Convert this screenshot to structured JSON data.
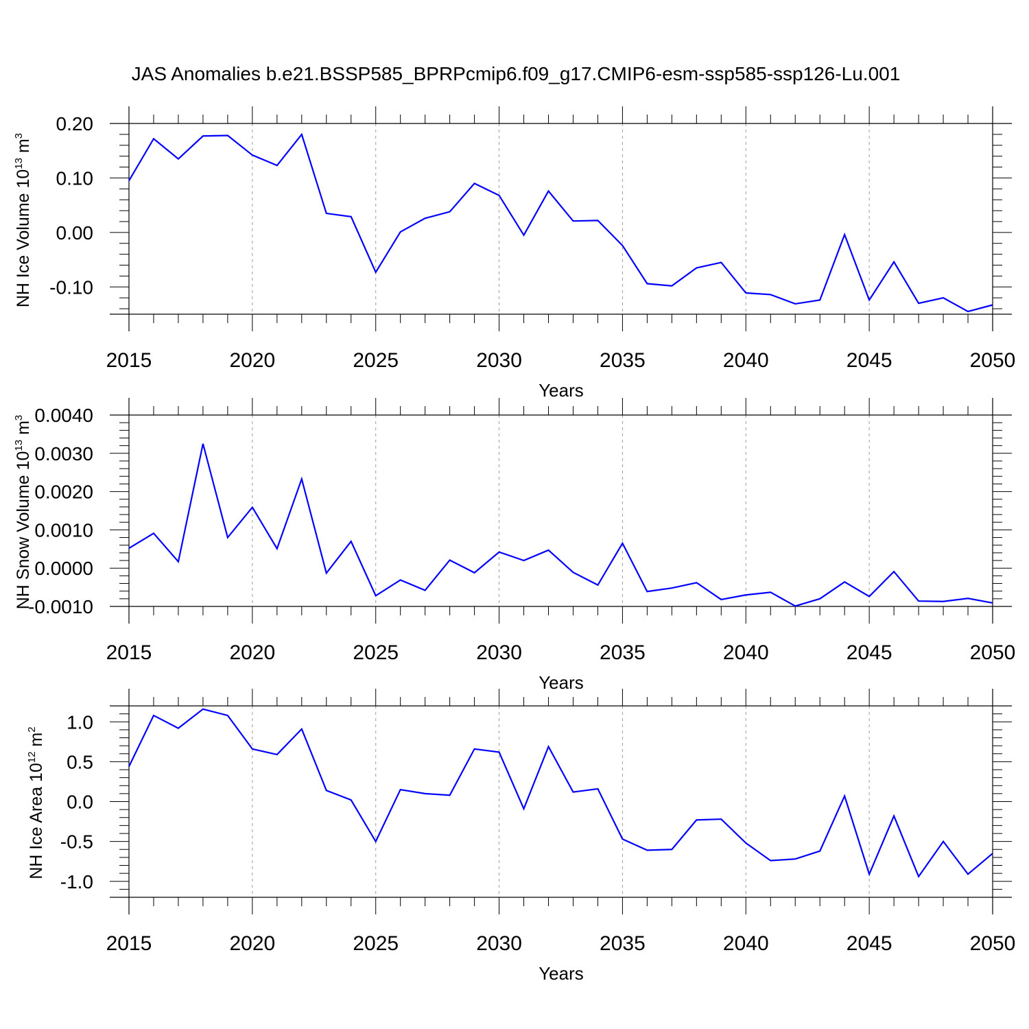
{
  "chart_data": [
    {
      "type": "line",
      "title": "JAS Anomalies b.e21.BSSP585_BPRPcmip6.f09_g17.CMIP6-esm-ssp585-ssp126-Lu.001",
      "xlabel": "Years",
      "ylabel": {
        "text": "NH Ice Volume 10",
        "exp": "13",
        "unit": " m",
        "unit_exp": "3"
      },
      "xlim": [
        2015,
        2050
      ],
      "ylim": [
        -0.15,
        0.2
      ],
      "x_ticks": [
        "2015",
        "2020",
        "2025",
        "2030",
        "2035",
        "2040",
        "2045",
        "2050"
      ],
      "y_ticks": [
        {
          "value": 0.2,
          "label": "0.20"
        },
        {
          "value": 0.1,
          "label": "0.10"
        },
        {
          "value": 0.0,
          "label": "0.00"
        },
        {
          "value": -0.1,
          "label": "-0.10"
        }
      ],
      "grid": "vertical-dashed",
      "series": [
        {
          "name": "NH Ice Volume",
          "color": "#0000ff",
          "x": [
            2015,
            2016,
            2017,
            2018,
            2019,
            2020,
            2021,
            2022,
            2023,
            2024,
            2025,
            2026,
            2027,
            2028,
            2029,
            2030,
            2031,
            2032,
            2033,
            2034,
            2035,
            2036,
            2037,
            2038,
            2039,
            2040,
            2041,
            2042,
            2043,
            2044,
            2045,
            2046,
            2047,
            2048,
            2049,
            2050
          ],
          "values": [
            0.095,
            0.172,
            0.135,
            0.177,
            0.178,
            0.142,
            0.123,
            0.18,
            0.035,
            0.029,
            -0.073,
            0.001,
            0.026,
            0.038,
            0.09,
            0.068,
            -0.005,
            0.076,
            0.021,
            0.022,
            -0.024,
            -0.094,
            -0.098,
            -0.065,
            -0.055,
            -0.111,
            -0.114,
            -0.131,
            -0.124,
            -0.004,
            -0.124,
            -0.054,
            -0.13,
            -0.12,
            -0.145,
            -0.133
          ]
        }
      ]
    },
    {
      "type": "line",
      "title": "",
      "xlabel": "Years",
      "ylabel": {
        "text": "NH Snow Volume 10",
        "exp": "13",
        "unit": " m",
        "unit_exp": "3"
      },
      "xlim": [
        2015,
        2050
      ],
      "ylim": [
        -0.001,
        0.004
      ],
      "x_ticks": [
        "2015",
        "2020",
        "2025",
        "2030",
        "2035",
        "2040",
        "2045",
        "2050"
      ],
      "y_ticks": [
        {
          "value": 0.004,
          "label": "0.0040"
        },
        {
          "value": 0.003,
          "label": "0.0030"
        },
        {
          "value": 0.002,
          "label": "0.0020"
        },
        {
          "value": 0.001,
          "label": "0.0010"
        },
        {
          "value": 0.0,
          "label": "0.0000"
        },
        {
          "value": -0.001,
          "label": "-0.0010"
        }
      ],
      "grid": "vertical-dashed",
      "series": [
        {
          "name": "NH Snow Volume",
          "color": "#0000ff",
          "x": [
            2015,
            2016,
            2017,
            2018,
            2019,
            2020,
            2021,
            2022,
            2023,
            2024,
            2025,
            2026,
            2027,
            2028,
            2029,
            2030,
            2031,
            2032,
            2033,
            2034,
            2035,
            2036,
            2037,
            2038,
            2039,
            2040,
            2041,
            2042,
            2043,
            2044,
            2045,
            2046,
            2047,
            2048,
            2049,
            2050
          ],
          "values": [
            0.00052,
            0.00091,
            0.00017,
            0.00325,
            0.0008,
            0.00159,
            0.00051,
            0.00233,
            -0.00013,
            0.0007,
            -0.00072,
            -0.00031,
            -0.00058,
            0.00021,
            -0.00012,
            0.00042,
            0.0002,
            0.00047,
            -0.00011,
            -0.00044,
            0.00065,
            -0.00061,
            -0.00052,
            -0.00038,
            -0.00082,
            -0.0007,
            -0.00063,
            -0.00099,
            -0.0008,
            -0.00036,
            -0.00074,
            -9e-05,
            -0.00086,
            -0.00087,
            -0.00079,
            -0.00091
          ]
        }
      ]
    },
    {
      "type": "line",
      "title": "",
      "xlabel": "Years",
      "ylabel": {
        "text": "NH Ice Area 10",
        "exp": "12",
        "unit": " m",
        "unit_exp": "2"
      },
      "xlim": [
        2015,
        2050
      ],
      "ylim": [
        -1.2,
        1.2
      ],
      "x_ticks": [
        "2015",
        "2020",
        "2025",
        "2030",
        "2035",
        "2040",
        "2045",
        "2050"
      ],
      "y_ticks": [
        {
          "value": 1.0,
          "label": "1.0"
        },
        {
          "value": 0.5,
          "label": "0.5"
        },
        {
          "value": 0.0,
          "label": "0.0"
        },
        {
          "value": -0.5,
          "label": "-0.5"
        },
        {
          "value": -1.0,
          "label": "-1.0"
        }
      ],
      "grid": "vertical-dashed",
      "series": [
        {
          "name": "NH Ice Area",
          "color": "#0000ff",
          "x": [
            2015,
            2016,
            2017,
            2018,
            2019,
            2020,
            2021,
            2022,
            2023,
            2024,
            2025,
            2026,
            2027,
            2028,
            2029,
            2030,
            2031,
            2032,
            2033,
            2034,
            2035,
            2036,
            2037,
            2038,
            2039,
            2040,
            2041,
            2042,
            2043,
            2044,
            2045,
            2046,
            2047,
            2048,
            2049,
            2050
          ],
          "values": [
            0.44,
            1.08,
            0.92,
            1.16,
            1.08,
            0.66,
            0.59,
            0.91,
            0.14,
            0.02,
            -0.5,
            0.15,
            0.1,
            0.08,
            0.66,
            0.62,
            -0.09,
            0.69,
            0.12,
            0.16,
            -0.47,
            -0.61,
            -0.6,
            -0.23,
            -0.22,
            -0.52,
            -0.74,
            -0.72,
            -0.62,
            0.07,
            -0.91,
            -0.18,
            -0.94,
            -0.5,
            -0.91,
            -0.65
          ]
        }
      ]
    }
  ]
}
